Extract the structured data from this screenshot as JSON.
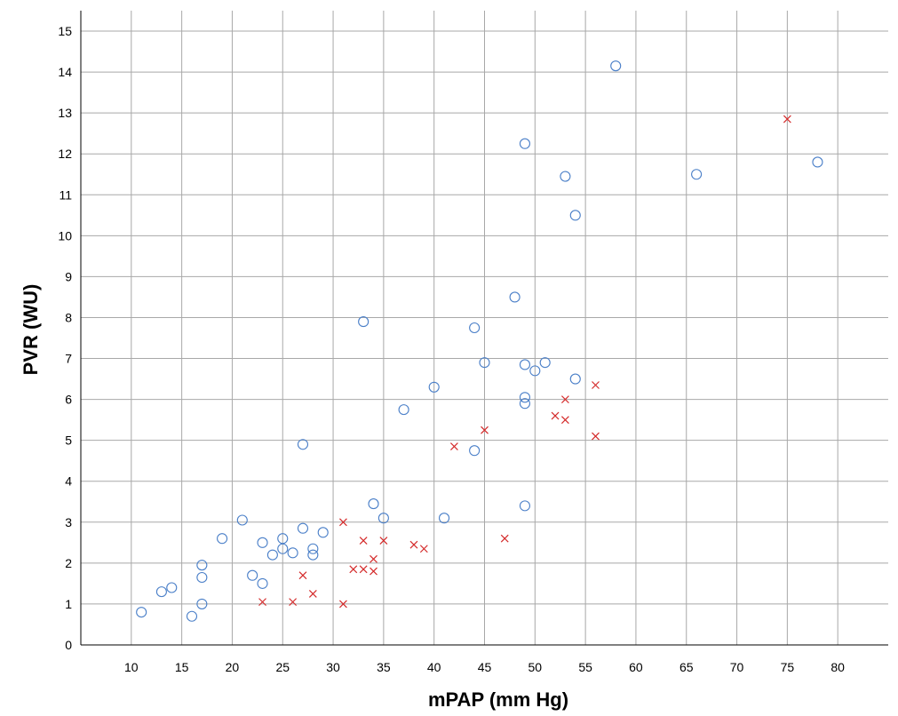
{
  "chart_data": {
    "type": "scatter",
    "title": "",
    "xlabel": "mPAP (mm Hg)",
    "ylabel": "PVR (WU)",
    "xlim": [
      5,
      85
    ],
    "ylim": [
      0,
      15.5
    ],
    "xticks": [
      10,
      15,
      20,
      25,
      30,
      35,
      40,
      45,
      50,
      55,
      60,
      65,
      70,
      75,
      80
    ],
    "yticks": [
      0,
      1,
      2,
      3,
      4,
      5,
      6,
      7,
      8,
      9,
      10,
      11,
      12,
      13,
      14,
      15
    ],
    "grid": true,
    "legend": "none",
    "series": [
      {
        "marker": "circle",
        "color": "#4a7fc8",
        "points": [
          [
            11,
            0.8
          ],
          [
            13,
            1.3
          ],
          [
            14,
            1.4
          ],
          [
            16,
            0.7
          ],
          [
            17,
            1.0
          ],
          [
            17,
            1.65
          ],
          [
            17,
            1.95
          ],
          [
            19,
            2.6
          ],
          [
            21,
            3.05
          ],
          [
            22,
            1.7
          ],
          [
            23,
            1.5
          ],
          [
            23,
            2.5
          ],
          [
            24,
            2.2
          ],
          [
            25,
            2.35
          ],
          [
            25,
            2.6
          ],
          [
            26,
            2.25
          ],
          [
            27,
            2.85
          ],
          [
            27,
            4.9
          ],
          [
            28,
            2.2
          ],
          [
            28,
            2.35
          ],
          [
            29,
            2.75
          ],
          [
            33,
            7.9
          ],
          [
            34,
            3.45
          ],
          [
            35,
            3.1
          ],
          [
            37,
            5.75
          ],
          [
            40,
            6.3
          ],
          [
            41,
            3.1
          ],
          [
            44,
            4.75
          ],
          [
            44,
            7.75
          ],
          [
            45,
            6.9
          ],
          [
            48,
            8.5
          ],
          [
            49,
            3.4
          ],
          [
            49,
            5.9
          ],
          [
            49,
            6.05
          ],
          [
            49,
            6.85
          ],
          [
            49,
            12.25
          ],
          [
            50,
            6.7
          ],
          [
            51,
            6.9
          ],
          [
            53,
            11.45
          ],
          [
            54,
            6.5
          ],
          [
            54,
            10.5
          ],
          [
            58,
            14.15
          ],
          [
            66,
            11.5
          ],
          [
            78,
            11.8
          ]
        ]
      },
      {
        "marker": "x",
        "color": "#d42a2a",
        "points": [
          [
            23,
            1.05
          ],
          [
            26,
            1.05
          ],
          [
            27,
            1.7
          ],
          [
            28,
            1.25
          ],
          [
            31,
            1.0
          ],
          [
            31,
            3.0
          ],
          [
            32,
            1.85
          ],
          [
            33,
            1.85
          ],
          [
            33,
            2.55
          ],
          [
            34,
            1.8
          ],
          [
            34,
            2.1
          ],
          [
            35,
            2.55
          ],
          [
            38,
            2.45
          ],
          [
            39,
            2.35
          ],
          [
            42,
            4.85
          ],
          [
            45,
            5.25
          ],
          [
            47,
            2.6
          ],
          [
            52,
            5.6
          ],
          [
            53,
            5.5
          ],
          [
            53,
            6.0
          ],
          [
            56,
            5.1
          ],
          [
            56,
            6.35
          ],
          [
            75,
            12.85
          ]
        ]
      }
    ]
  }
}
